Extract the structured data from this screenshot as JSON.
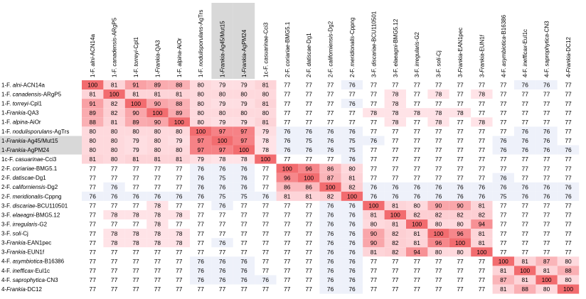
{
  "chart_data": {
    "type": "heatmap",
    "title": "",
    "xlabel": "",
    "ylabel": "",
    "highlight_color": "#d8d8d8",
    "labels": [
      {
        "prefix": "1-F. ",
        "name": "alni",
        "suffix": "-ACN14a"
      },
      {
        "prefix": "1-F. ",
        "name": "canadensis",
        "suffix": "-ARgP5"
      },
      {
        "prefix": "1-F. ",
        "name": "torreyi",
        "suffix": "-Cpl1"
      },
      {
        "prefix": "1-",
        "name": "Frankia",
        "suffix": "-QA3"
      },
      {
        "prefix": "1-F. ",
        "name": "alpina",
        "suffix": "-AiOr"
      },
      {
        "prefix": "1-F. ",
        "name": "nodulisporulans",
        "suffix": "-AgTrs"
      },
      {
        "prefix": "1-",
        "name": "Frankia",
        "suffix": "-Ag45/Mut15"
      },
      {
        "prefix": "1-",
        "name": "Frankia",
        "suffix": "-AgPM24"
      },
      {
        "prefix": "1c-F. ",
        "name": "casuarinae",
        "suffix": "-Cci3"
      },
      {
        "prefix": "2-F. ",
        "name": "coriariae",
        "suffix": "-BMG5.1"
      },
      {
        "prefix": "2-F. ",
        "name": "datiscae",
        "suffix": "-Dg1"
      },
      {
        "prefix": "2-F. ",
        "name": "californiensis",
        "suffix": "-Dg2"
      },
      {
        "prefix": "2-F. ",
        "name": "meridionalis",
        "suffix": "-Cppng"
      },
      {
        "prefix": "3-F. ",
        "name": "discariae",
        "suffix": "-BCU110501"
      },
      {
        "prefix": "3-F. ",
        "name": "elaeagni",
        "suffix": "-BMG5.12"
      },
      {
        "prefix": "3-F. ",
        "name": "irregularis",
        "suffix": "-G2"
      },
      {
        "prefix": "3-F. ",
        "name": "soli",
        "suffix": "-Cj"
      },
      {
        "prefix": "3-",
        "name": "Frankia",
        "suffix": "-EAN1pec"
      },
      {
        "prefix": "3-",
        "name": "Frankia",
        "suffix": "-EUN1f"
      },
      {
        "prefix": "4-F. ",
        "name": "asymbiotica",
        "suffix": "-B16386"
      },
      {
        "prefix": "4-F. ",
        "name": "inefficax",
        "suffix": "-EuI1c"
      },
      {
        "prefix": "4-F. ",
        "name": "saprophytica",
        "suffix": "-CN3"
      },
      {
        "prefix": "4-",
        "name": "Frankia",
        "suffix": "-DC12"
      }
    ],
    "highlighted_rows": [
      6,
      7
    ],
    "highlighted_cols": [
      6,
      7
    ],
    "values": [
      [
        100,
        81,
        91,
        89,
        88,
        80,
        79,
        79,
        81,
        77,
        77,
        77,
        76,
        77,
        77,
        77,
        77,
        77,
        77,
        77,
        76,
        76,
        77
      ],
      [
        81,
        100,
        81,
        81,
        81,
        80,
        80,
        80,
        80,
        77,
        77,
        77,
        77,
        77,
        78,
        77,
        78,
        77,
        78,
        77,
        77,
        77,
        77
      ],
      [
        91,
        82,
        100,
        90,
        88,
        80,
        79,
        79,
        81,
        77,
        77,
        77,
        76,
        77,
        78,
        77,
        77,
        77,
        77,
        77,
        77,
        77,
        77
      ],
      [
        89,
        82,
        90,
        100,
        89,
        80,
        80,
        80,
        80,
        77,
        77,
        77,
        77,
        78,
        78,
        78,
        78,
        78,
        77,
        77,
        77,
        77,
        77
      ],
      [
        88,
        81,
        89,
        90,
        100,
        80,
        79,
        79,
        81,
        77,
        77,
        77,
        77,
        77,
        78,
        77,
        78,
        77,
        78,
        77,
        77,
        77,
        77
      ],
      [
        80,
        80,
        80,
        80,
        80,
        100,
        97,
        97,
        79,
        76,
        76,
        76,
        76,
        77,
        77,
        77,
        77,
        77,
        77,
        77,
        76,
        76,
        77
      ],
      [
        80,
        80,
        79,
        80,
        79,
        97,
        100,
        97,
        78,
        76,
        75,
        76,
        75,
        76,
        77,
        77,
        77,
        77,
        77,
        76,
        76,
        76,
        77
      ],
      [
        80,
        80,
        79,
        80,
        80,
        97,
        97,
        100,
        78,
        76,
        76,
        76,
        75,
        77,
        77,
        77,
        77,
        77,
        77,
        76,
        76,
        76,
        76
      ],
      [
        81,
        80,
        81,
        81,
        81,
        79,
        78,
        78,
        100,
        77,
        77,
        77,
        76,
        77,
        77,
        77,
        77,
        77,
        77,
        77,
        77,
        77,
        77
      ],
      [
        77,
        77,
        77,
        77,
        77,
        76,
        76,
        76,
        77,
        100,
        96,
        86,
        80,
        77,
        77,
        77,
        77,
        77,
        77,
        77,
        77,
        77,
        77
      ],
      [
        77,
        77,
        77,
        77,
        77,
        76,
        75,
        76,
        77,
        96,
        100,
        87,
        81,
        77,
        77,
        77,
        77,
        77,
        77,
        76,
        77,
        77,
        77
      ],
      [
        77,
        76,
        77,
        77,
        77,
        76,
        76,
        76,
        77,
        86,
        86,
        100,
        82,
        76,
        76,
        76,
        76,
        76,
        76,
        76,
        76,
        76,
        76
      ],
      [
        76,
        76,
        76,
        76,
        76,
        76,
        75,
        75,
        76,
        81,
        81,
        82,
        100,
        76,
        76,
        76,
        76,
        76,
        76,
        75,
        76,
        76,
        76
      ],
      [
        77,
        77,
        77,
        78,
        77,
        77,
        76,
        77,
        77,
        77,
        77,
        76,
        76,
        100,
        81,
        80,
        90,
        90,
        81,
        77,
        77,
        77,
        77
      ],
      [
        77,
        78,
        78,
        78,
        78,
        77,
        77,
        77,
        77,
        77,
        77,
        76,
        76,
        81,
        100,
        82,
        82,
        82,
        82,
        77,
        77,
        77,
        77
      ],
      [
        77,
        77,
        77,
        78,
        77,
        77,
        77,
        77,
        77,
        77,
        77,
        76,
        76,
        80,
        81,
        100,
        80,
        80,
        94,
        77,
        77,
        77,
        77
      ],
      [
        77,
        78,
        78,
        78,
        78,
        77,
        77,
        77,
        77,
        77,
        77,
        76,
        76,
        90,
        82,
        81,
        100,
        96,
        81,
        77,
        77,
        77,
        77
      ],
      [
        77,
        78,
        78,
        78,
        78,
        77,
        76,
        77,
        77,
        77,
        77,
        76,
        76,
        90,
        82,
        81,
        96,
        100,
        81,
        77,
        77,
        77,
        77
      ],
      [
        77,
        77,
        77,
        77,
        77,
        77,
        77,
        77,
        77,
        77,
        77,
        76,
        76,
        81,
        82,
        94,
        80,
        80,
        100,
        77,
        77,
        77,
        77
      ],
      [
        77,
        77,
        77,
        77,
        77,
        76,
        76,
        76,
        77,
        77,
        77,
        76,
        76,
        77,
        77,
        77,
        77,
        77,
        77,
        100,
        81,
        87,
        80
      ],
      [
        77,
        77,
        77,
        77,
        77,
        76,
        76,
        76,
        77,
        77,
        77,
        76,
        76,
        77,
        77,
        77,
        77,
        77,
        77,
        81,
        100,
        81,
        88
      ],
      [
        77,
        77,
        77,
        77,
        77,
        76,
        76,
        76,
        76,
        77,
        77,
        76,
        76,
        77,
        77,
        77,
        77,
        77,
        77,
        87,
        81,
        100,
        80
      ],
      [
        77,
        77,
        77,
        77,
        77,
        77,
        77,
        77,
        77,
        77,
        77,
        76,
        76,
        77,
        77,
        77,
        77,
        77,
        77,
        81,
        88,
        80,
        100
      ]
    ]
  }
}
